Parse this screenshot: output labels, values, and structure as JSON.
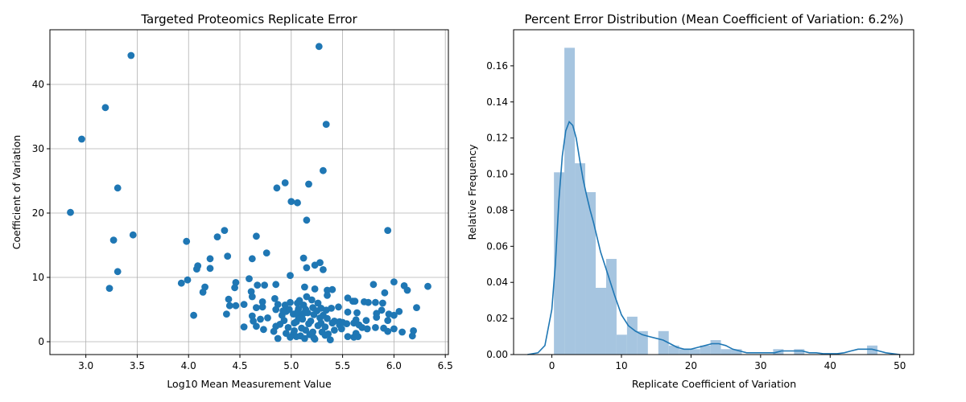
{
  "chart_data": [
    {
      "type": "scatter",
      "title": "Targeted Proteomics Replicate Error",
      "xlabel": "Log10 Mean Measurement Value",
      "ylabel": "Coefficient of Variation",
      "xlim": [
        2.65,
        6.53
      ],
      "ylim": [
        -2.0,
        48.5
      ],
      "xticks": [
        3.0,
        3.5,
        4.0,
        4.5,
        5.0,
        5.5,
        6.0,
        6.5
      ],
      "xtick_labels": [
        "3.0",
        "3.5",
        "4.0",
        "4.5",
        "5.0",
        "5.5",
        "6.0",
        "6.5"
      ],
      "yticks": [
        0,
        10,
        20,
        30,
        40
      ],
      "ytick_labels": [
        "0",
        "10",
        "20",
        "30",
        "40"
      ],
      "grid": true,
      "color": "#1f77b4",
      "points": [
        [
          3.44,
          44.5
        ],
        [
          5.27,
          45.9
        ],
        [
          3.19,
          36.4
        ],
        [
          2.96,
          31.5
        ],
        [
          5.34,
          33.8
        ],
        [
          5.31,
          26.6
        ],
        [
          4.94,
          24.7
        ],
        [
          5.17,
          24.5
        ],
        [
          4.86,
          23.9
        ],
        [
          3.31,
          23.9
        ],
        [
          5.0,
          21.8
        ],
        [
          5.06,
          21.6
        ],
        [
          2.85,
          20.1
        ],
        [
          5.15,
          18.9
        ],
        [
          5.94,
          17.3
        ],
        [
          4.35,
          17.3
        ],
        [
          3.46,
          16.6
        ],
        [
          4.66,
          16.4
        ],
        [
          4.28,
          16.3
        ],
        [
          3.27,
          15.8
        ],
        [
          3.98,
          15.6
        ],
        [
          4.76,
          13.8
        ],
        [
          4.38,
          13.3
        ],
        [
          5.12,
          13.0
        ],
        [
          4.21,
          12.9
        ],
        [
          4.62,
          12.9
        ],
        [
          5.28,
          12.3
        ],
        [
          5.23,
          11.9
        ],
        [
          4.09,
          11.8
        ],
        [
          5.15,
          11.5
        ],
        [
          4.08,
          11.3
        ],
        [
          4.21,
          11.4
        ],
        [
          5.31,
          11.2
        ],
        [
          3.31,
          10.9
        ],
        [
          4.99,
          10.3
        ],
        [
          4.59,
          9.8
        ],
        [
          3.99,
          9.6
        ],
        [
          6.0,
          9.3
        ],
        [
          4.46,
          9.2
        ],
        [
          3.93,
          9.1
        ],
        [
          5.8,
          8.9
        ],
        [
          4.85,
          8.9
        ],
        [
          4.67,
          8.8
        ],
        [
          4.74,
          8.8
        ],
        [
          6.33,
          8.6
        ],
        [
          6.1,
          8.7
        ],
        [
          4.16,
          8.5
        ],
        [
          5.13,
          8.5
        ],
        [
          4.45,
          8.4
        ],
        [
          3.23,
          8.3
        ],
        [
          5.4,
          8.1
        ],
        [
          5.35,
          8.0
        ],
        [
          6.13,
          8.0
        ],
        [
          5.23,
          8.2
        ],
        [
          4.61,
          7.8
        ],
        [
          4.14,
          7.7
        ],
        [
          5.91,
          7.6
        ],
        [
          5.35,
          7.2
        ],
        [
          5.15,
          7.0
        ],
        [
          4.62,
          7.0
        ],
        [
          4.84,
          6.7
        ],
        [
          5.55,
          6.8
        ],
        [
          4.39,
          6.6
        ],
        [
          5.6,
          6.3
        ],
        [
          4.72,
          6.2
        ],
        [
          5.62,
          6.3
        ],
        [
          5.71,
          6.2
        ],
        [
          5.75,
          6.1
        ],
        [
          5.82,
          6.1
        ],
        [
          5.89,
          6.0
        ],
        [
          4.99,
          6.1
        ],
        [
          5.06,
          6.0
        ],
        [
          5.26,
          6.0
        ],
        [
          4.87,
          5.8
        ],
        [
          4.54,
          5.8
        ],
        [
          4.94,
          5.7
        ],
        [
          4.4,
          5.6
        ],
        [
          4.46,
          5.6
        ],
        [
          4.72,
          5.4
        ],
        [
          4.66,
          5.3
        ],
        [
          6.22,
          5.3
        ],
        [
          5.21,
          5.3
        ],
        [
          5.29,
          5.2
        ],
        [
          5.39,
          5.2
        ],
        [
          5.46,
          5.4
        ],
        [
          5.07,
          5.1
        ],
        [
          4.85,
          5.0
        ],
        [
          5.14,
          5.0
        ],
        [
          5.34,
          4.9
        ],
        [
          5.88,
          4.9
        ],
        [
          6.05,
          4.7
        ],
        [
          4.95,
          4.7
        ],
        [
          5.55,
          4.6
        ],
        [
          5.64,
          4.5
        ],
        [
          5.83,
          4.4
        ],
        [
          5.95,
          4.3
        ],
        [
          4.37,
          4.3
        ],
        [
          5.02,
          4.3
        ],
        [
          5.12,
          4.4
        ],
        [
          5.22,
          4.2
        ],
        [
          6.0,
          4.1
        ],
        [
          4.05,
          4.1
        ],
        [
          4.62,
          4.0
        ],
        [
          5.83,
          3.8
        ],
        [
          4.77,
          3.7
        ],
        [
          5.35,
          3.6
        ],
        [
          4.7,
          3.5
        ],
        [
          5.63,
          3.4
        ],
        [
          5.73,
          3.3
        ],
        [
          5.94,
          3.3
        ],
        [
          4.63,
          3.2
        ],
        [
          5.05,
          3.1
        ],
        [
          5.47,
          3.1
        ],
        [
          5.42,
          3.2
        ],
        [
          5.29,
          2.9
        ],
        [
          5.61,
          2.9
        ],
        [
          4.89,
          2.7
        ],
        [
          5.54,
          2.8
        ],
        [
          5.66,
          2.6
        ],
        [
          4.85,
          2.4
        ],
        [
          4.66,
          2.4
        ],
        [
          4.54,
          2.3
        ],
        [
          5.69,
          2.2
        ],
        [
          5.82,
          2.2
        ],
        [
          5.9,
          2.1
        ],
        [
          6.0,
          2.0
        ],
        [
          5.74,
          2.0
        ],
        [
          5.49,
          2.0
        ],
        [
          4.73,
          1.9
        ],
        [
          5.14,
          1.8
        ],
        [
          6.19,
          1.7
        ],
        [
          5.94,
          1.6
        ],
        [
          6.08,
          1.5
        ],
        [
          4.83,
          1.6
        ],
        [
          5.3,
          1.5
        ],
        [
          5.63,
          1.3
        ],
        [
          5.02,
          1.2
        ],
        [
          5.18,
          1.1
        ],
        [
          5.33,
          1.0
        ],
        [
          5.55,
          0.8
        ],
        [
          5.61,
          0.7
        ],
        [
          6.18,
          0.9
        ],
        [
          4.87,
          0.5
        ],
        [
          5.05,
          0.8
        ],
        [
          5.22,
          0.6
        ],
        [
          5.38,
          0.3
        ],
        [
          5.65,
          0.8
        ],
        [
          4.95,
          1.3
        ],
        [
          5.1,
          2.1
        ],
        [
          5.26,
          2.5
        ],
        [
          5.42,
          1.8
        ],
        [
          4.93,
          3.3
        ],
        [
          5.07,
          3.9
        ],
        [
          5.19,
          3.2
        ],
        [
          4.98,
          5.0
        ],
        [
          5.12,
          5.7
        ],
        [
          5.25,
          4.8
        ],
        [
          4.91,
          4.1
        ],
        [
          5.03,
          2.9
        ],
        [
          5.16,
          4.5
        ],
        [
          5.09,
          0.9
        ],
        [
          5.21,
          1.5
        ],
        [
          5.33,
          2.3
        ],
        [
          5.47,
          2.6
        ],
        [
          4.97,
          2.2
        ],
        [
          5.11,
          3.5
        ],
        [
          5.28,
          3.7
        ],
        [
          5.4,
          2.9
        ],
        [
          5.03,
          1.7
        ],
        [
          5.17,
          2.8
        ],
        [
          4.92,
          4.8
        ],
        [
          5.06,
          4.6
        ],
        [
          5.31,
          4.1
        ],
        [
          5.23,
          0.4
        ],
        [
          5.36,
          1.2
        ],
        [
          4.99,
          0.7
        ],
        [
          5.13,
          0.5
        ],
        [
          5.5,
          3.0
        ],
        [
          5.2,
          6.5
        ],
        [
          5.08,
          6.4
        ]
      ]
    },
    {
      "type": "bar",
      "title": "Percent Error Distribution (Mean Coefficient of Variation: 6.2%)",
      "xlabel": "Replicate Coefficient of Variation",
      "ylabel": "Relative Frequency",
      "xlim": [
        -5.5,
        52
      ],
      "ylim": [
        0,
        0.18
      ],
      "xticks": [
        0,
        10,
        20,
        30,
        40,
        50
      ],
      "xtick_labels": [
        "0",
        "10",
        "20",
        "30",
        "40",
        "50"
      ],
      "yticks": [
        0.0,
        0.02,
        0.04,
        0.06,
        0.08,
        0.1,
        0.12,
        0.14,
        0.16
      ],
      "ytick_labels": [
        "0.00",
        "0.02",
        "0.04",
        "0.06",
        "0.08",
        "0.10",
        "0.12",
        "0.14",
        "0.16"
      ],
      "grid": false,
      "bar_color": "#a6c5e0",
      "line_color": "#1f77b4",
      "bin_width": 1.5,
      "bins": [
        [
          0.3,
          0.101
        ],
        [
          1.8,
          0.17
        ],
        [
          3.3,
          0.106
        ],
        [
          4.8,
          0.09
        ],
        [
          6.3,
          0.037
        ],
        [
          7.8,
          0.053
        ],
        [
          9.3,
          0.011
        ],
        [
          10.8,
          0.021
        ],
        [
          12.3,
          0.013
        ],
        [
          13.8,
          0.0
        ],
        [
          15.3,
          0.013
        ],
        [
          16.8,
          0.005
        ],
        [
          18.3,
          0.003
        ],
        [
          19.8,
          0.003
        ],
        [
          21.3,
          0.005
        ],
        [
          22.8,
          0.008
        ],
        [
          24.3,
          0.003
        ],
        [
          25.8,
          0.003
        ],
        [
          27.3,
          0.0
        ],
        [
          28.8,
          0.0
        ],
        [
          30.3,
          0.0
        ],
        [
          31.8,
          0.003
        ],
        [
          33.3,
          0.0
        ],
        [
          34.8,
          0.003
        ],
        [
          36.3,
          0.0
        ],
        [
          37.8,
          0.0
        ],
        [
          39.3,
          0.0
        ],
        [
          40.8,
          0.0
        ],
        [
          42.3,
          0.0
        ],
        [
          43.8,
          0.0
        ],
        [
          45.3,
          0.005
        ]
      ],
      "kde": [
        [
          -3.5,
          0.0
        ],
        [
          -2.0,
          0.001
        ],
        [
          -1.0,
          0.005
        ],
        [
          0.0,
          0.025
        ],
        [
          0.5,
          0.05
        ],
        [
          1.0,
          0.085
        ],
        [
          1.5,
          0.11
        ],
        [
          2.0,
          0.124
        ],
        [
          2.5,
          0.129
        ],
        [
          3.0,
          0.127
        ],
        [
          3.5,
          0.12
        ],
        [
          4.0,
          0.108
        ],
        [
          4.5,
          0.097
        ],
        [
          5.0,
          0.088
        ],
        [
          5.5,
          0.08
        ],
        [
          6.0,
          0.073
        ],
        [
          6.5,
          0.065
        ],
        [
          7.0,
          0.057
        ],
        [
          8.0,
          0.045
        ],
        [
          9.0,
          0.033
        ],
        [
          10.0,
          0.022
        ],
        [
          11.0,
          0.016
        ],
        [
          12.0,
          0.013
        ],
        [
          13.0,
          0.011
        ],
        [
          14.0,
          0.01
        ],
        [
          15.0,
          0.009
        ],
        [
          16.0,
          0.008
        ],
        [
          17.0,
          0.006
        ],
        [
          18.0,
          0.004
        ],
        [
          19.0,
          0.003
        ],
        [
          20.0,
          0.003
        ],
        [
          21.0,
          0.004
        ],
        [
          22.0,
          0.005
        ],
        [
          23.0,
          0.006
        ],
        [
          24.0,
          0.006
        ],
        [
          25.0,
          0.005
        ],
        [
          26.0,
          0.003
        ],
        [
          27.0,
          0.002
        ],
        [
          28.0,
          0.001
        ],
        [
          29.0,
          0.001
        ],
        [
          30.0,
          0.001
        ],
        [
          31.0,
          0.001
        ],
        [
          32.0,
          0.001
        ],
        [
          33.0,
          0.002
        ],
        [
          34.0,
          0.002
        ],
        [
          35.0,
          0.002
        ],
        [
          36.0,
          0.002
        ],
        [
          37.0,
          0.001
        ],
        [
          38.0,
          0.001
        ],
        [
          39.0,
          0.0005
        ],
        [
          40.0,
          0.0005
        ],
        [
          41.0,
          0.0005
        ],
        [
          42.0,
          0.001
        ],
        [
          43.0,
          0.002
        ],
        [
          44.0,
          0.003
        ],
        [
          45.0,
          0.003
        ],
        [
          46.0,
          0.003
        ],
        [
          47.0,
          0.002
        ],
        [
          48.0,
          0.001
        ],
        [
          49.0,
          0.0005
        ],
        [
          50.0,
          0.0
        ]
      ]
    }
  ]
}
